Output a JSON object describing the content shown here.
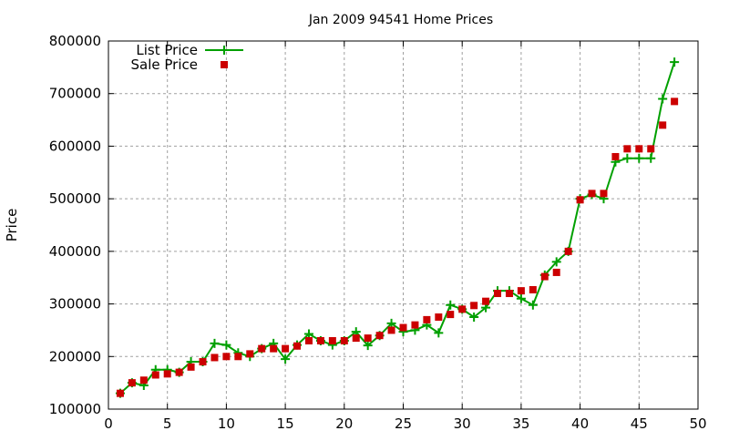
{
  "chart_data": {
    "type": "line",
    "title": "Jan 2009 94541 Home Prices",
    "xlabel": "",
    "ylabel": "Price",
    "xlim": [
      0,
      50
    ],
    "ylim": [
      100000,
      800000
    ],
    "xticks": [
      0,
      5,
      10,
      15,
      20,
      25,
      30,
      35,
      40,
      45,
      50
    ],
    "yticks": [
      100000,
      200000,
      300000,
      400000,
      500000,
      600000,
      700000,
      800000
    ],
    "grid": true,
    "legend_position": "top-left",
    "x": [
      1,
      2,
      3,
      4,
      5,
      6,
      7,
      8,
      9,
      10,
      11,
      12,
      13,
      14,
      15,
      16,
      17,
      18,
      19,
      20,
      21,
      22,
      23,
      24,
      25,
      26,
      27,
      28,
      29,
      30,
      31,
      32,
      33,
      34,
      35,
      36,
      37,
      38,
      39,
      40,
      41,
      42,
      43,
      44,
      45,
      46,
      47,
      48
    ],
    "series": [
      {
        "name": "List Price",
        "style": "linespoints",
        "marker": "plus",
        "color": "#00a000",
        "values": [
          130000,
          150000,
          145000,
          175000,
          175000,
          170000,
          190000,
          190000,
          225000,
          222000,
          207000,
          200000,
          215000,
          225000,
          195000,
          222000,
          243000,
          230000,
          222000,
          230000,
          247000,
          221000,
          240000,
          263000,
          247000,
          250000,
          260000,
          245000,
          298000,
          290000,
          275000,
          293000,
          325000,
          325000,
          310000,
          298000,
          355000,
          380000,
          400000,
          500000,
          508000,
          500000,
          570000,
          577000,
          577000,
          577000,
          690000,
          760000
        ]
      },
      {
        "name": "Sale Price",
        "style": "points",
        "marker": "square",
        "color": "#cc0000",
        "values": [
          130000,
          150000,
          155000,
          165000,
          167000,
          170000,
          180000,
          190000,
          198000,
          200000,
          200000,
          205000,
          215000,
          215000,
          215000,
          220000,
          230000,
          230000,
          230000,
          230000,
          235000,
          235000,
          240000,
          250000,
          255000,
          260000,
          270000,
          275000,
          280000,
          290000,
          297000,
          305000,
          320000,
          320000,
          325000,
          327000,
          352000,
          360000,
          400000,
          498000,
          510000,
          510000,
          580000,
          595000,
          595000,
          595000,
          640000,
          685000
        ]
      }
    ]
  }
}
